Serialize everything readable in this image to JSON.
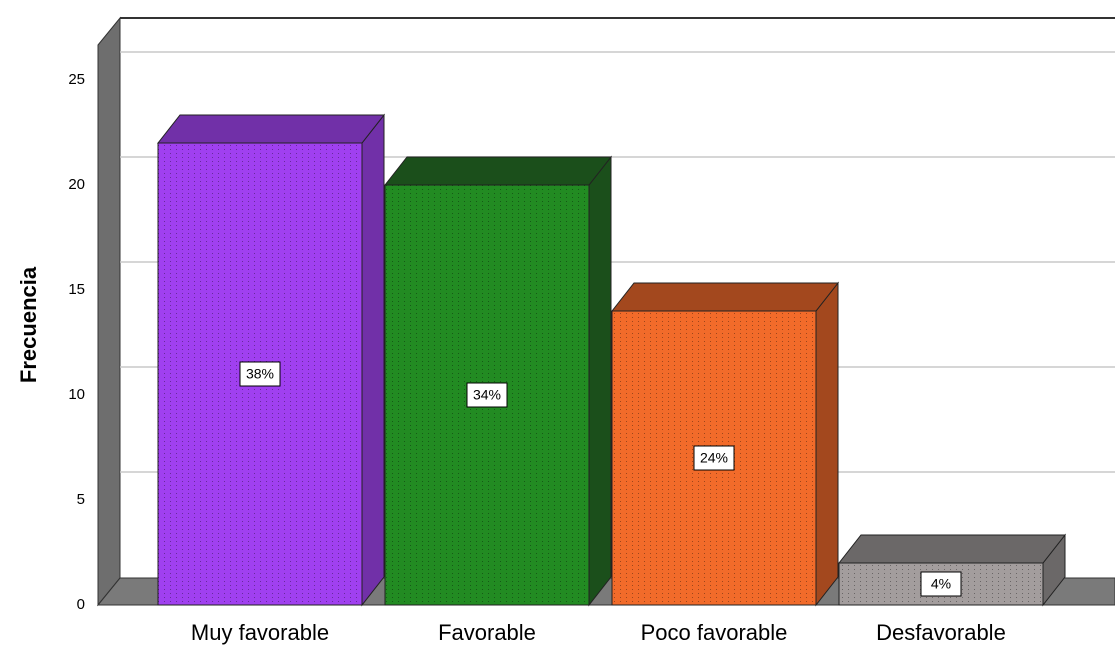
{
  "chart_data": {
    "type": "bar3d",
    "y_label": "Frecuencia",
    "categories": [
      "Muy  favorable",
      "Favorable",
      "Poco favorable",
      "Desfavorable"
    ],
    "values": [
      22,
      20,
      14,
      2
    ],
    "colors": [
      "#a040f0",
      "#228b22",
      "#f26b2a",
      "#a39d9d"
    ],
    "side_colors": [
      "#7130a8",
      "#1b4f1b",
      "#a3481e",
      "#6b6868"
    ],
    "percent_labels": {
      "values": [
        38,
        34,
        24,
        4
      ],
      "value_labels": [
        "38%",
        "34%",
        "24%",
        "4%"
      ]
    },
    "ylim": [
      0,
      25
    ],
    "yticks": [
      0,
      5,
      10,
      15,
      20,
      25
    ],
    "grid": true
  }
}
